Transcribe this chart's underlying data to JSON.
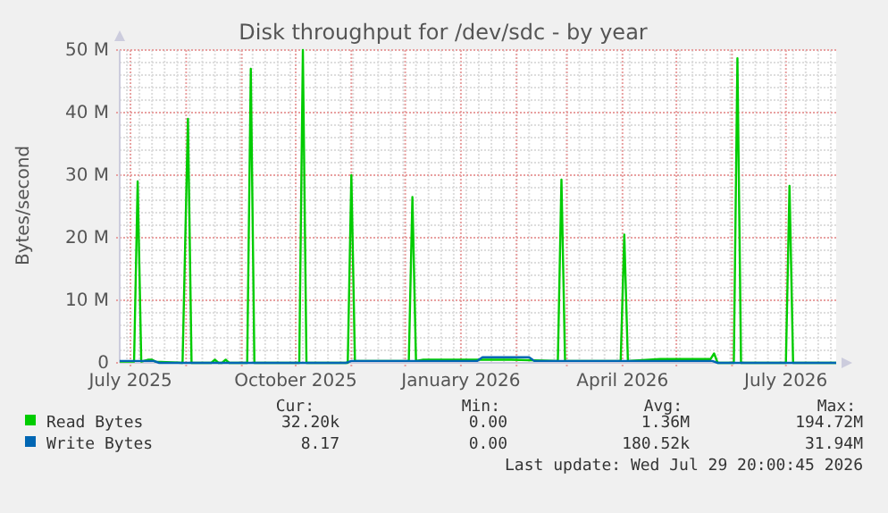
{
  "chart_data": {
    "type": "line",
    "title": "Disk throughput for /dev/sdc - by year",
    "ylabel": "Bytes/second",
    "xlim": [
      "2025-06-25",
      "2026-07-29"
    ],
    "xticks": [
      {
        "value": "2025-07-01",
        "label": "July 2025"
      },
      {
        "value": "2025-10-01",
        "label": "October 2025"
      },
      {
        "value": "2026-01-01",
        "label": "January 2026"
      },
      {
        "value": "2026-04-01",
        "label": "April 2026"
      },
      {
        "value": "2026-07-01",
        "label": "July 2026"
      }
    ],
    "ylim": [
      0,
      50000000
    ],
    "yticks": [
      {
        "value": 0,
        "label": "0"
      },
      {
        "value": 10000000,
        "label": "10 M"
      },
      {
        "value": 20000000,
        "label": "20 M"
      },
      {
        "value": 30000000,
        "label": "30 M"
      },
      {
        "value": 40000000,
        "label": "40 M"
      },
      {
        "value": 50000000,
        "label": "50 M"
      }
    ],
    "grid": true,
    "legend": "bottom",
    "line_style": "solid",
    "marker": "none",
    "series": [
      {
        "name": "Read Bytes",
        "color": "#00cc00",
        "x": [
          "2025-06-25",
          "2025-07-03",
          "2025-07-05",
          "2025-07-07",
          "2025-07-11",
          "2025-07-13",
          "2025-07-15",
          "2025-07-30",
          "2025-08-02",
          "2025-08-04",
          "2025-08-15",
          "2025-08-17",
          "2025-08-19",
          "2025-08-21",
          "2025-08-23",
          "2025-08-25",
          "2025-09-04",
          "2025-09-06",
          "2025-09-08",
          "2025-10-03",
          "2025-10-05",
          "2025-10-07",
          "2025-10-30",
          "2025-11-01",
          "2025-11-03",
          "2025-12-03",
          "2025-12-05",
          "2025-12-07",
          "2025-12-11",
          "2026-01-29",
          "2026-02-24",
          "2026-02-26",
          "2026-02-28",
          "2026-03-31",
          "2026-04-02",
          "2026-04-04",
          "2026-04-22",
          "2026-05-20",
          "2026-05-22",
          "2026-05-24",
          "2026-06-02",
          "2026-06-04",
          "2026-06-06",
          "2026-07-01",
          "2026-07-03",
          "2026-07-05",
          "2026-07-29"
        ],
        "values": [
          200000,
          200000,
          29000000,
          200000,
          500000,
          500000,
          200000,
          0,
          39000000,
          0,
          0,
          500000,
          0,
          0,
          500000,
          0,
          0,
          47000000,
          0,
          0,
          50000000,
          0,
          0,
          30000000,
          300000,
          300000,
          26500000,
          300000,
          500000,
          500000,
          300000,
          29300000,
          300000,
          300000,
          20500000,
          300000,
          600000,
          600000,
          1500000,
          0,
          0,
          48700000,
          0,
          0,
          28300000,
          0,
          0
        ]
      },
      {
        "name": "Write Bytes",
        "color": "#0066b3",
        "x": [
          "2025-06-25",
          "2025-07-14",
          "2025-07-17",
          "2025-10-29",
          "2025-11-01",
          "2026-01-10",
          "2026-01-13",
          "2026-02-08",
          "2026-02-11",
          "2026-05-21",
          "2026-05-24",
          "2026-07-29"
        ],
        "values": [
          300000,
          300000,
          0,
          0,
          300000,
          300000,
          900000,
          900000,
          300000,
          300000,
          0,
          0
        ]
      }
    ],
    "annotations": [
      "Cur:",
      "Min:",
      "Avg:",
      "Max:",
      "32.20k",
      "0.00",
      "1.36M",
      "194.72M",
      "8.17",
      "0.00",
      "180.52k",
      "31.94M",
      "Last update: Wed Jul 29 20:00:45 2026"
    ]
  }
}
